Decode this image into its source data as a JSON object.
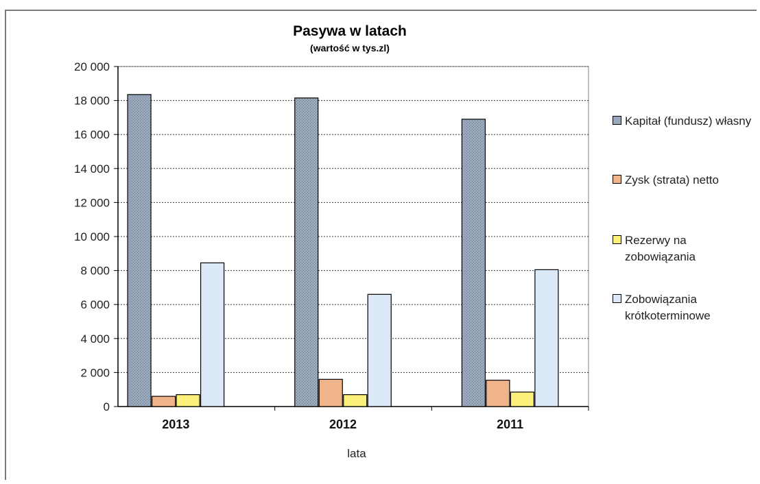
{
  "chart_data": {
    "type": "bar",
    "title": "Pasywa w latach",
    "subtitle": "(wartość w tys.zl)",
    "xlabel": "lata",
    "ylabel": "",
    "categories": [
      "2013",
      "2012",
      "2011"
    ],
    "ylim": [
      0,
      20000
    ],
    "yticks": [
      0,
      2000,
      4000,
      6000,
      8000,
      10000,
      12000,
      14000,
      16000,
      18000,
      20000
    ],
    "ytick_labels": [
      "0",
      "2 000",
      "4 000",
      "6 000",
      "8 000",
      "10 000",
      "12 000",
      "14 000",
      "16 000",
      "18 000",
      "20 000"
    ],
    "grid": true,
    "legend_position": "right",
    "series": [
      {
        "name": "Kapitał (fundusz) własny",
        "values": [
          18350,
          18150,
          16900
        ],
        "color": "#9aa8bc"
      },
      {
        "name": "Zysk (strata) netto",
        "values": [
          600,
          1600,
          1550
        ],
        "color": "#f0b48a"
      },
      {
        "name": "Rezerwy na zobowiązania",
        "values": [
          700,
          700,
          850
        ],
        "color": "#fbf07a"
      },
      {
        "name": "Zobowiązania krótkoterminowe",
        "values": [
          8450,
          6600,
          8050
        ],
        "color": "#dce9f6"
      }
    ]
  }
}
